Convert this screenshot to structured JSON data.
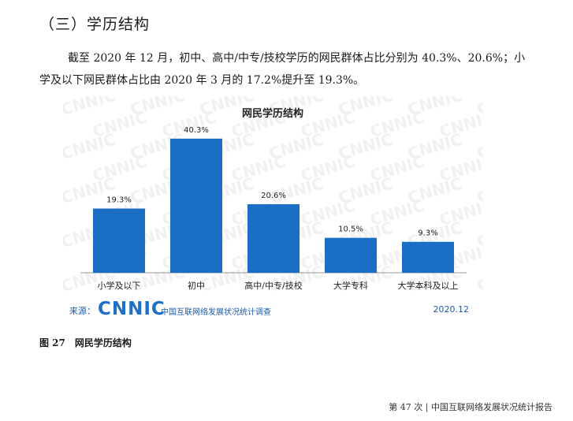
{
  "section": {
    "heading": "（三）学历结构"
  },
  "paragraph": {
    "line1": "截至 2020 年 12 月，初中、高中/中专/技校学历的网民群体占比分别为 40.3%、20.6%；小",
    "line2": "学及以下网民群体占比由 2020 年 3 月的 17.2%提升至 19.3%。"
  },
  "chart_data": {
    "type": "bar",
    "title": "网民学历结构",
    "categories": [
      "小学及以下",
      "初中",
      "高中/中专/技校",
      "大学专科",
      "大学本科及以上"
    ],
    "values": [
      19.3,
      40.3,
      20.6,
      10.5,
      9.3
    ],
    "value_labels": [
      "19.3%",
      "40.3%",
      "20.6%",
      "10.5%",
      "9.3%"
    ],
    "xlabel": "",
    "ylabel": "",
    "ylim": [
      0,
      45
    ],
    "grid": false,
    "bar_color": "#1a6fc4",
    "watermark": "CNNIC"
  },
  "source": {
    "label": "来源：",
    "logo": "CNNIC",
    "org": "中国互联网络发展状况统计调查",
    "date": "2020.12"
  },
  "figure": {
    "caption": "图 27　网民学历结构"
  },
  "footer": {
    "text": "第 47 次 | 中国互联网络发展状况统计报告"
  }
}
